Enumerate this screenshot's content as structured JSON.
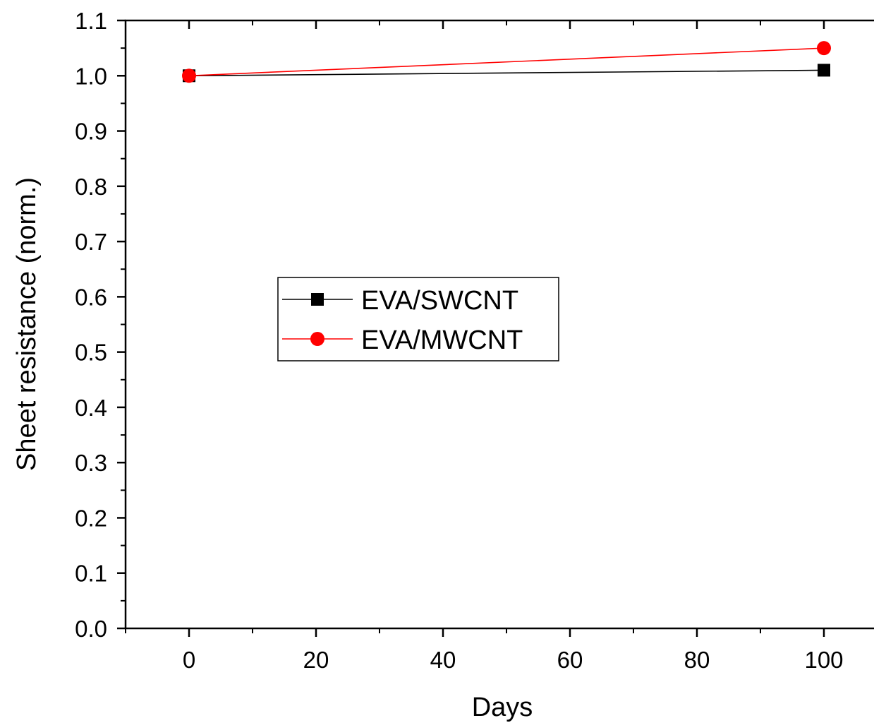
{
  "chart_data": {
    "type": "line",
    "title": "",
    "xlabel": "Days",
    "ylabel": "Sheet resistance (norm.)",
    "xlim": [
      -10,
      110
    ],
    "ylim": [
      0.0,
      1.1
    ],
    "x_ticks": [
      "0",
      "20",
      "40",
      "60",
      "80",
      "100"
    ],
    "x_tick_values": [
      0,
      20,
      40,
      60,
      80,
      100
    ],
    "y_ticks": [
      "0.0",
      "0.1",
      "0.2",
      "0.3",
      "0.4",
      "0.5",
      "0.6",
      "0.7",
      "0.8",
      "0.9",
      "1.0",
      "1.1"
    ],
    "y_tick_values": [
      0.0,
      0.1,
      0.2,
      0.3,
      0.4,
      0.5,
      0.6,
      0.7,
      0.8,
      0.9,
      1.0,
      1.1
    ],
    "grid": false,
    "legend_position": "middle-left",
    "series": [
      {
        "name": "EVA/SWCNT",
        "marker": "square",
        "color": "#000000",
        "x": [
          0,
          100
        ],
        "y": [
          1.0,
          1.01
        ]
      },
      {
        "name": "EVA/MWCNT",
        "marker": "circle",
        "color": "#ff0000",
        "x": [
          0,
          100
        ],
        "y": [
          1.0,
          1.05
        ]
      }
    ]
  }
}
